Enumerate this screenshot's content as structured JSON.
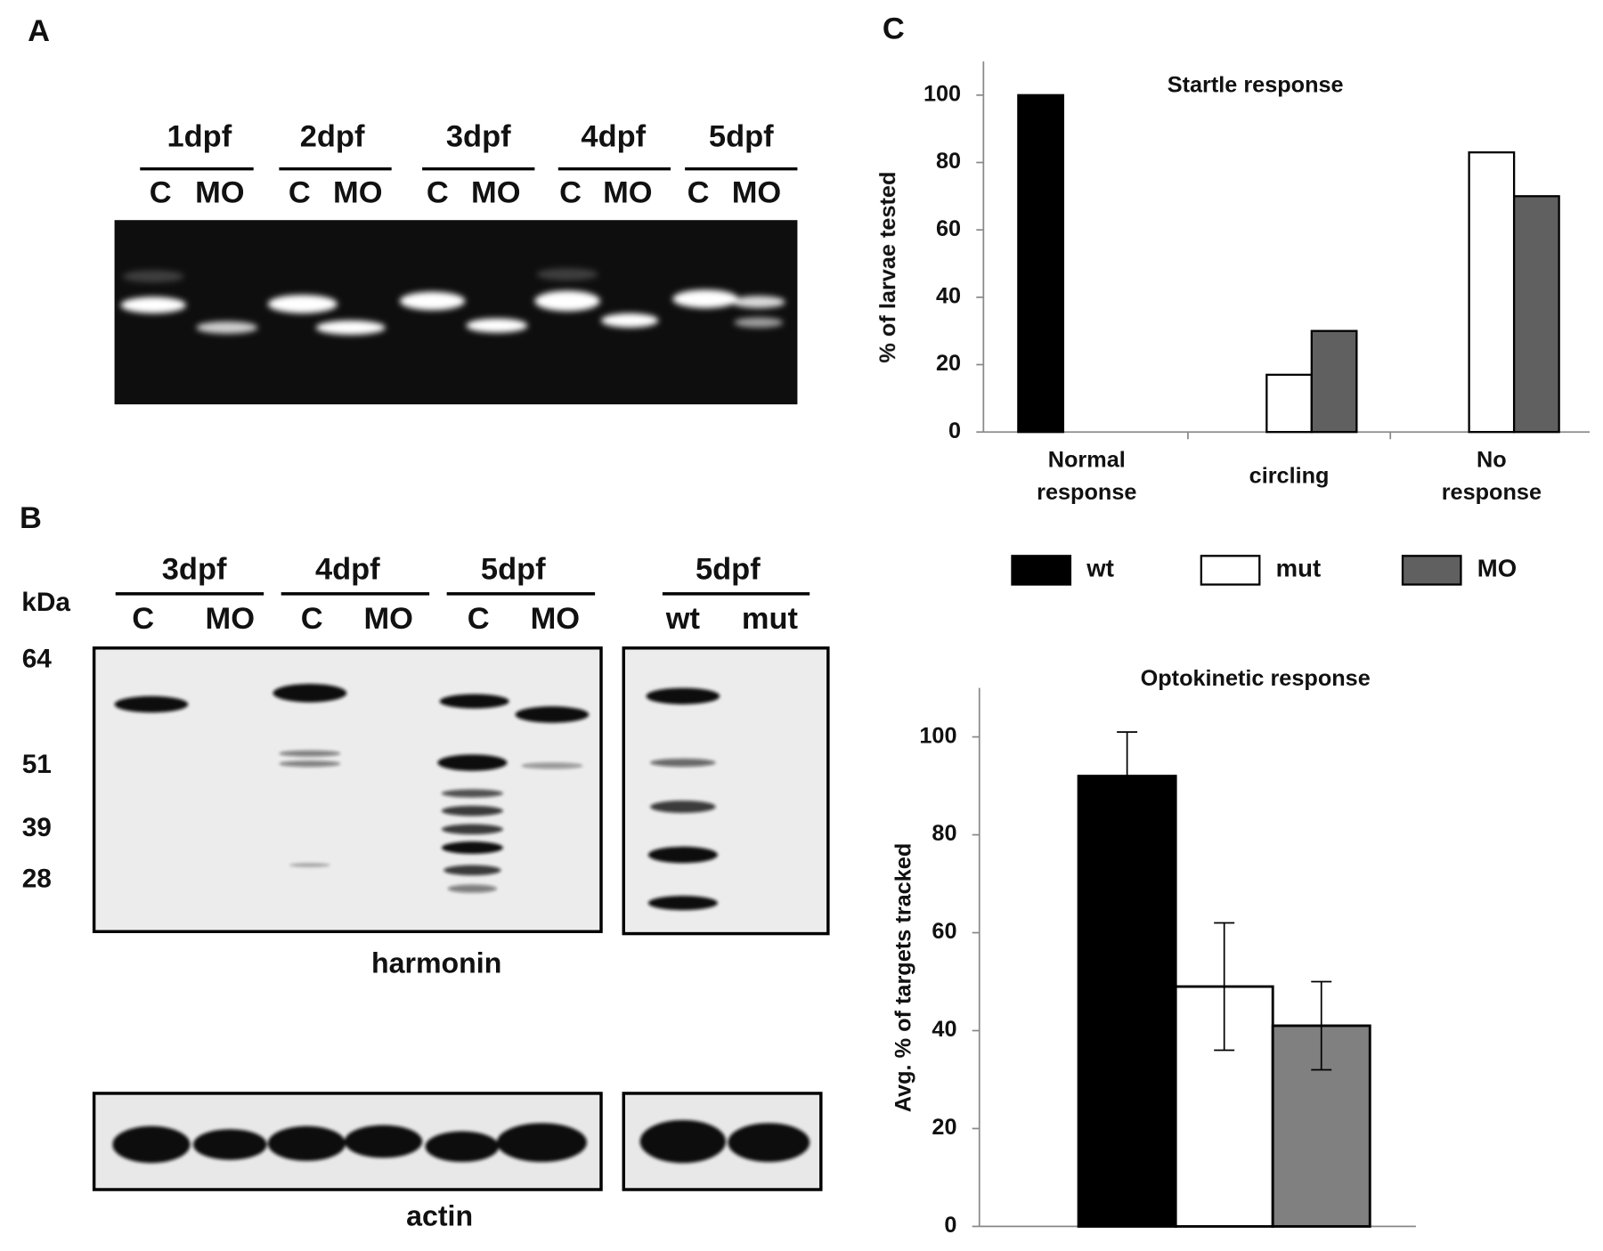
{
  "panels": {
    "a": "A",
    "b": "B",
    "c": "C"
  },
  "gel_a": {
    "stages": [
      "1dpf",
      "2dpf",
      "3dpf",
      "4dpf",
      "5dpf"
    ],
    "lanes": [
      "C",
      "MO",
      "C",
      "MO",
      "C",
      "MO",
      "C",
      "MO",
      "C",
      "MO"
    ]
  },
  "blot_b": {
    "stages": [
      "3dpf",
      "4dpf",
      "5dpf",
      "5dpf"
    ],
    "lanes": [
      "C",
      "MO",
      "C",
      "MO",
      "C",
      "MO",
      "wt",
      "mut"
    ],
    "unit": "kDa",
    "markers": [
      "64",
      "51",
      "39",
      "28"
    ],
    "harmonin": "harmonin",
    "actin": "actin"
  },
  "chart_data": [
    {
      "type": "bar",
      "title": "Startle response",
      "y_label": "% of larvae tested",
      "categories": [
        "Normal response",
        "circling",
        "No response"
      ],
      "series": [
        {
          "name": "wt",
          "color": "#000000",
          "values": [
            100,
            0,
            0
          ]
        },
        {
          "name": "mut",
          "color": "#ffffff",
          "values": [
            0,
            17,
            83
          ]
        },
        {
          "name": "MO",
          "color": "#606060",
          "values": [
            0,
            30,
            70
          ]
        }
      ],
      "ylim": [
        0,
        110
      ],
      "yticks": [
        0,
        20,
        40,
        60,
        80,
        100
      ],
      "legend": "bottom"
    },
    {
      "type": "bar",
      "title": "Optokinetic response",
      "y_label": "Avg. % of targets tracked",
      "values": [
        92,
        49,
        41
      ],
      "errors": [
        9,
        13,
        9
      ],
      "colors": [
        "#000000",
        "#ffffff",
        "#808080"
      ],
      "ylim": [
        0,
        110
      ],
      "yticks": [
        0,
        20,
        40,
        60,
        80,
        100
      ]
    }
  ]
}
